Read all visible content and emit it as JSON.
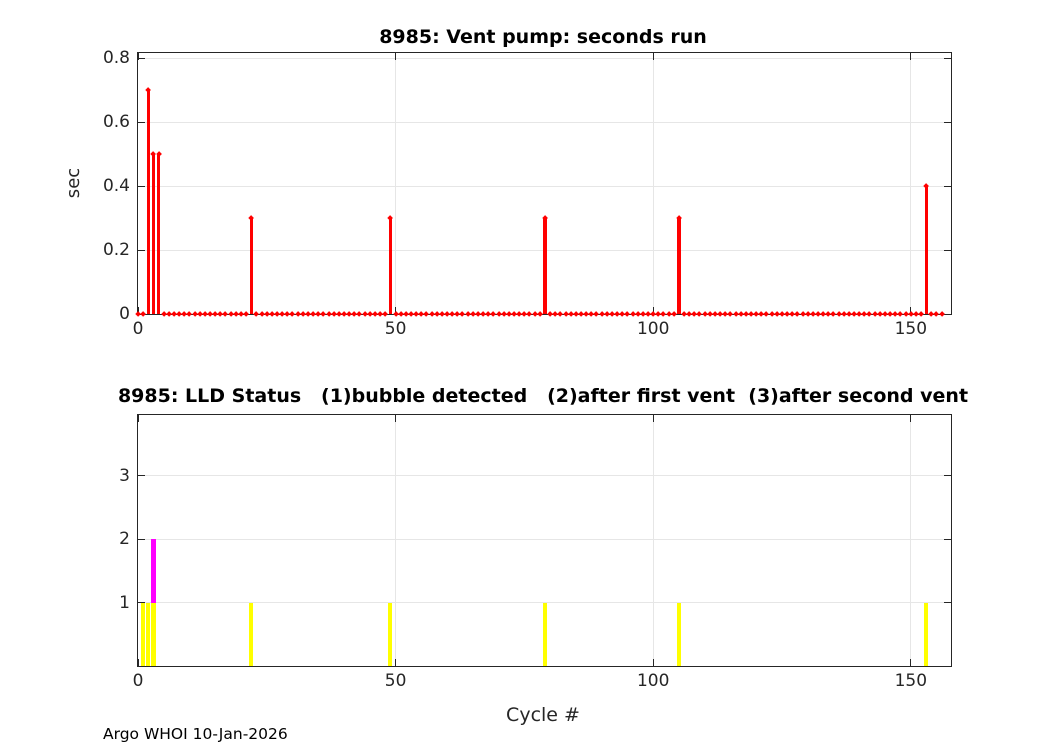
{
  "figure": {
    "footer": "Argo WHOI 10-Jan-2026",
    "background": "#ffffff",
    "axis_color": "#262626",
    "grid_color": "#e6e6e6"
  },
  "chart_data": [
    {
      "type": "stem",
      "title": "8985: Vent pump: seconds run",
      "ylabel": "sec",
      "series_color": "#ff0000",
      "xlim": [
        0,
        157.8
      ],
      "ylim": [
        0,
        0.816
      ],
      "xticks": [
        0,
        50,
        100,
        150
      ],
      "yticks": [
        0,
        0.2,
        0.4,
        0.6,
        0.8
      ],
      "grid": true,
      "legend": "none",
      "cycles_range": [
        0,
        156
      ],
      "baseline_value": 0,
      "nonzero_points": {
        "2": 0.7,
        "3": 0.5,
        "4": 0.5,
        "22": 0.3,
        "49": 0.3,
        "79": 0.3,
        "105": 0.3,
        "153": 0.4
      }
    },
    {
      "type": "bar",
      "title": "8985: LLD Status   (1)bubble detected   (2)after first vent  (3)after second vent",
      "xlabel": "Cycle #",
      "xlim": [
        0,
        157.8
      ],
      "ylim": [
        0,
        3.96
      ],
      "xticks": [
        0,
        50,
        100,
        150
      ],
      "yticks": [
        1,
        2,
        3
      ],
      "grid": true,
      "legend": "none",
      "series": [
        {
          "name": "magenta",
          "color": "#ff00ff",
          "points": {
            "3": 2
          }
        },
        {
          "name": "yellow",
          "color": "#ffff00",
          "points": {
            "1": 1,
            "2": 1,
            "3": 1,
            "22": 1,
            "49": 1,
            "79": 1,
            "105": 1,
            "153": 1
          }
        }
      ]
    }
  ]
}
